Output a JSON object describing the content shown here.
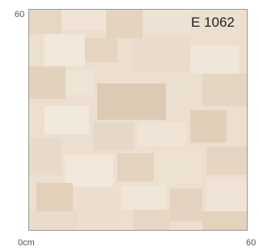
{
  "labels": {
    "top_left": "60",
    "code": "E 1062",
    "bottom_left": "0cm",
    "bottom_right": "60"
  }
}
